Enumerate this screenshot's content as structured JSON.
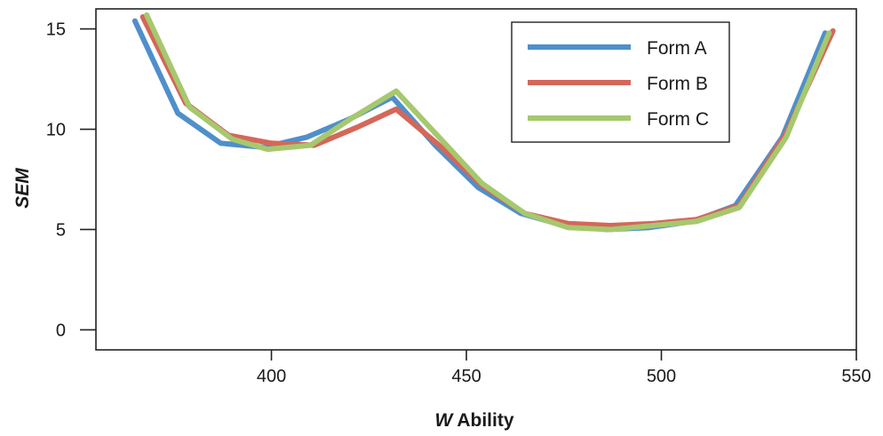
{
  "chart_data": {
    "type": "line",
    "title": "",
    "xlabel": {
      "italic": "W",
      "rest": " Ability"
    },
    "ylabel": "SEM",
    "xlim": [
      355,
      550
    ],
    "ylim": [
      -1,
      16
    ],
    "xticks": [
      400,
      450,
      500,
      550
    ],
    "yticks": [
      0,
      5,
      10,
      15
    ],
    "grid": false,
    "legend_position": "top-right",
    "series": [
      {
        "name": "Form A",
        "color": "#4f8fcb",
        "x": [
          365,
          376,
          387,
          398,
          409,
          420,
          431,
          442,
          453,
          464,
          475,
          486,
          497,
          508,
          519,
          531,
          542
        ],
        "y": [
          15.4,
          10.8,
          9.3,
          9.1,
          9.6,
          10.5,
          11.6,
          9.2,
          7.1,
          5.8,
          5.2,
          5.0,
          5.1,
          5.4,
          6.2,
          9.6,
          14.8
        ]
      },
      {
        "name": "Form B",
        "color": "#d4675a",
        "x": [
          367,
          378,
          389,
          400,
          411,
          422,
          432,
          443,
          454,
          465,
          476,
          487,
          498,
          509,
          520,
          532,
          544
        ],
        "y": [
          15.6,
          11.3,
          9.7,
          9.3,
          9.2,
          10.1,
          11.0,
          9.2,
          7.2,
          5.8,
          5.3,
          5.2,
          5.3,
          5.5,
          6.2,
          9.8,
          14.9
        ]
      },
      {
        "name": "Form C",
        "color": "#a6c86e",
        "x": [
          368,
          379,
          390,
          399,
          410,
          421,
          432,
          443,
          454,
          465,
          476,
          487,
          498,
          509,
          520,
          532,
          543
        ],
        "y": [
          15.7,
          11.1,
          9.5,
          9.0,
          9.2,
          10.6,
          11.9,
          9.6,
          7.3,
          5.8,
          5.1,
          5.0,
          5.2,
          5.4,
          6.1,
          9.6,
          14.8
        ]
      }
    ]
  }
}
